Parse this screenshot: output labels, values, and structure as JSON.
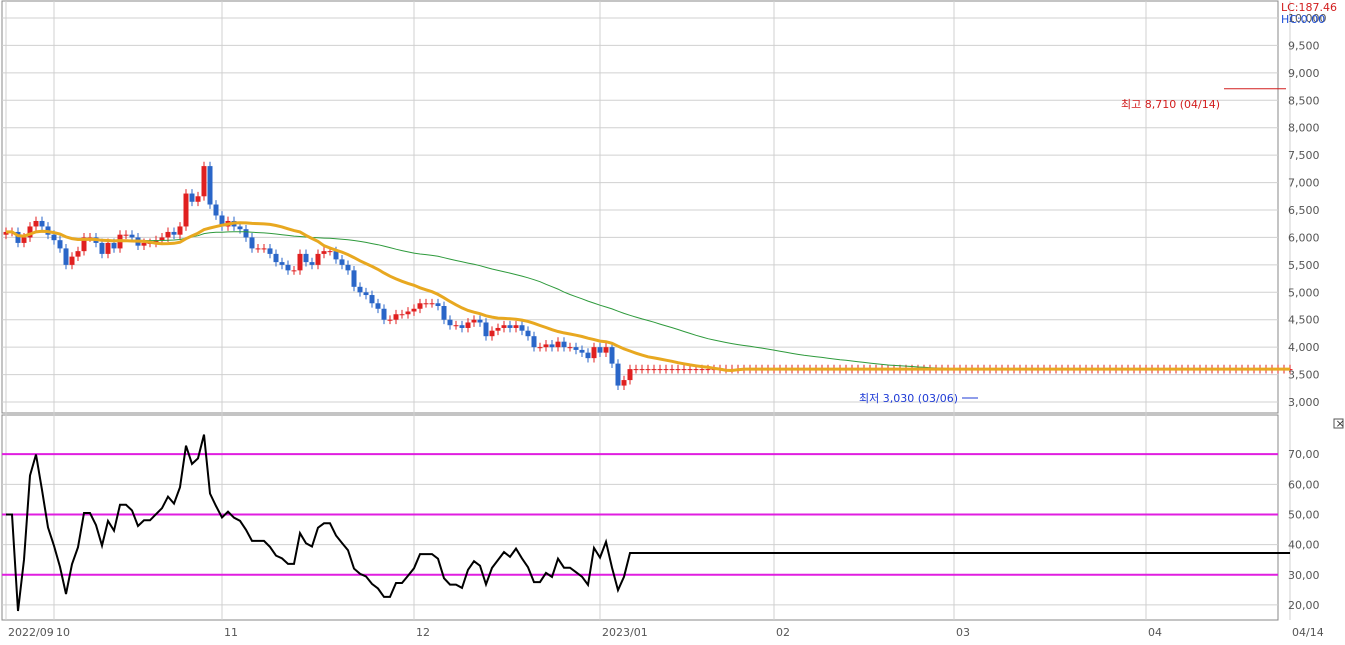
{
  "header": {
    "lc_label": "LC:187.46",
    "hc_label": "HC:0.00",
    "lc_color": "#d21e1e",
    "hc_color": "#1f4fd6"
  },
  "annotations": {
    "high_label": "최고 8,710 (04/14)",
    "low_label": "최저 3,030 (03/06)",
    "high_value": 8710,
    "low_value": 3030,
    "high_color": "#d21e1e",
    "low_color": "#1f3bd6"
  },
  "colors": {
    "up": "#e02020",
    "down": "#2a66c8",
    "ma_short": "#e8a820",
    "ma_long": "#2e9a3c",
    "rsi_line": "#000000",
    "rsi_ref": "#e01ee0",
    "oversold_fill": "#9fd8f0",
    "overbought_fill": "#f4b090",
    "grid": "#d0d0d0",
    "axis_text": "#555555"
  },
  "icons": {
    "collapse": "collapse-icon"
  },
  "chart_data": [
    {
      "type": "candlestick",
      "title": "",
      "ylim": [
        2800,
        10200
      ],
      "yticks": [
        3000,
        3500,
        4000,
        4500,
        5000,
        5500,
        6000,
        6500,
        7000,
        7500,
        8000,
        8500,
        9000,
        9500,
        10000
      ],
      "ytick_labels": [
        "3,000",
        "3,500",
        "4,000",
        "4,500",
        "5,000",
        "5,500",
        "6,000",
        "6,500",
        "7,000",
        "7,500",
        "8,000",
        "8,500",
        "9,000",
        "9,500",
        "10,000"
      ],
      "x_labels": [
        {
          "label": "2022/09",
          "index": 0
        },
        {
          "label": "10",
          "index": 8
        },
        {
          "label": "11",
          "index": 36
        },
        {
          "label": "12",
          "index": 68
        },
        {
          "label": "2023/01",
          "index": 99
        },
        {
          "label": "02",
          "index": 128
        },
        {
          "label": "03",
          "index": 158
        },
        {
          "label": "04",
          "index": 190
        },
        {
          "label": "04/14",
          "index": 214
        }
      ],
      "close": [
        6100,
        6100,
        5900,
        6000,
        6200,
        6300,
        6200,
        6050,
        5950,
        5800,
        5500,
        5650,
        5750,
        6000,
        6000,
        5900,
        5700,
        5900,
        5800,
        6050,
        6050,
        6000,
        5850,
        5900,
        5900,
        5950,
        6000,
        6100,
        6050,
        6200,
        6800,
        6650,
        6750,
        7300,
        6600,
        6400,
        6200,
        6300,
        6200,
        6150,
        6000,
        5800,
        5800,
        5800,
        5700,
        5550,
        5500,
        5400,
        5400,
        5700,
        5550,
        5500,
        5700,
        5750,
        5750,
        5600,
        5500,
        5400,
        5100,
        5000,
        4950,
        4800,
        4700,
        4500,
        4500,
        4600,
        4600,
        4650,
        4700,
        4800,
        4800,
        4800,
        4750,
        4500,
        4400,
        4400,
        4350,
        4450,
        4500,
        4450,
        4200,
        4300,
        4350,
        4400,
        4350,
        4400,
        4300,
        4200,
        4000,
        4000,
        4050,
        4000,
        4100,
        4000,
        4000,
        3950,
        3900,
        3800,
        4000,
        3900,
        4000,
        3700,
        3300,
        3400,
        3600
      ],
      "series": [
        {
          "name": "",
          "values": []
        }
      ]
    },
    {
      "type": "line",
      "title": "",
      "ylim": [
        15,
        82
      ],
      "yticks": [
        20,
        30,
        40,
        50,
        60,
        70
      ],
      "ytick_labels": [
        "20,00",
        "30,00",
        "40,00",
        "50,00",
        "60,00",
        "70,00"
      ],
      "reference_lines": [
        70,
        50,
        30
      ]
    }
  ]
}
